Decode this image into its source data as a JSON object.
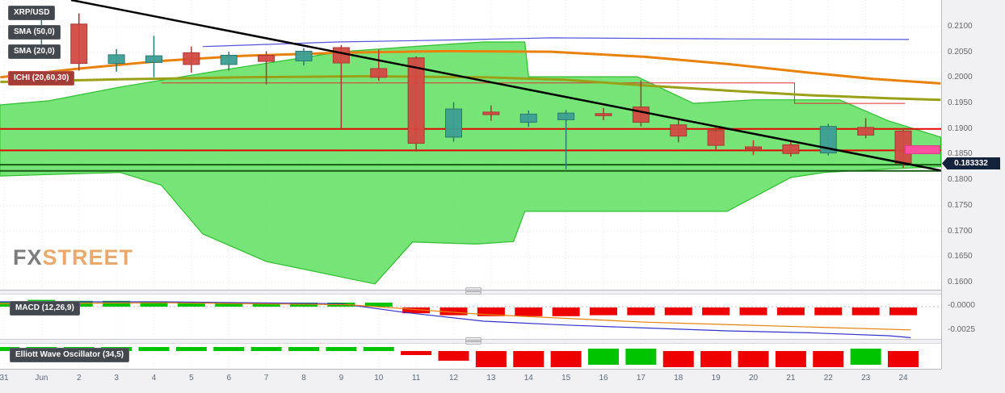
{
  "legend": {
    "symbol": "XRP/USD",
    "sma50": "SMA (50,0)",
    "sma20": "SMA (20,0)",
    "ichimoku": "ICHI (20,60,30)",
    "macd": "MACD (12,26,9)",
    "ewo": "Elliott Wave Oscillator (34,5)"
  },
  "watermark": {
    "fx": "FX",
    "street": "STREET"
  },
  "price_scale": {
    "ticks": [
      "0.2100",
      "0.2050",
      "0.2000",
      "0.1950",
      "0.1900",
      "0.1850",
      "0.1800",
      "0.1750",
      "0.1700",
      "0.1650",
      "0.1600"
    ],
    "current_price": "0.183332",
    "macd_ticks": [
      {
        "label": "-0.0000",
        "value": 0
      },
      {
        "label": "-0.0025",
        "value": -0.0025
      }
    ]
  },
  "time_scale": {
    "labels": [
      "31",
      "Jun",
      "2",
      "3",
      "4",
      "5",
      "6",
      "7",
      "8",
      "9",
      "10",
      "11",
      "12",
      "13",
      "14",
      "15",
      "16",
      "17",
      "18",
      "19",
      "20",
      "21",
      "22",
      "23",
      "24"
    ]
  },
  "colors": {
    "candle_up": "#3d9e93",
    "candle_up_border": "#2a7a71",
    "candle_down": "#d24a42",
    "candle_down_border": "#a93832",
    "cloud": "#55dd55",
    "cloud_border": "#2fbf2f",
    "sma50": "#e8820c",
    "sma20": "#9aa119",
    "kijun": "#e03030",
    "chikou": "#5555dd",
    "level_red": "#e10600",
    "level_green": "#175c13",
    "trend": "#000000",
    "macd_line": "#3333cc",
    "macd_signal": "#e8820c",
    "hist_up": "#00c400",
    "hist_down": "#ee0000",
    "badge_bg": "#43474e",
    "ichi_badge_bg": "#a23c36",
    "price_badge_bg": "#15223c",
    "alert_marker": "#ff4fa0",
    "grid": "#ececef"
  },
  "chart_data": {
    "type": "candlestick",
    "title": "XRP/USD daily with Ichimoku cloud, SMA(50), SMA(20), MACD(12,26,9), Elliott Wave Oscillator(34,5)",
    "x_labels": [
      "31",
      "Jun",
      "2",
      "3",
      "4",
      "5",
      "6",
      "7",
      "8",
      "9",
      "10",
      "11",
      "12",
      "13",
      "14",
      "15",
      "16",
      "17",
      "18",
      "19",
      "20",
      "21",
      "22",
      "23",
      "24"
    ],
    "price_axis": {
      "min": 0.1585,
      "max": 0.2152,
      "ticks": [
        0.21,
        0.205,
        0.2,
        0.195,
        0.19,
        0.185,
        0.18,
        0.175,
        0.17,
        0.165,
        0.16
      ]
    },
    "current_price": 0.183332,
    "candles": [
      null,
      {
        "o": 0.208,
        "h": 0.2115,
        "l": 0.2058,
        "c": 0.2102
      },
      {
        "o": 0.2105,
        "h": 0.2126,
        "l": 0.2014,
        "c": 0.2028
      },
      {
        "o": 0.2028,
        "h": 0.2056,
        "l": 0.2012,
        "c": 0.2045
      },
      {
        "o": 0.203,
        "h": 0.2082,
        "l": 0.2001,
        "c": 0.2043
      },
      {
        "o": 0.2049,
        "h": 0.2061,
        "l": 0.201,
        "c": 0.2026
      },
      {
        "o": 0.2026,
        "h": 0.2051,
        "l": 0.2014,
        "c": 0.2044
      },
      {
        "o": 0.2044,
        "h": 0.2052,
        "l": 0.1987,
        "c": 0.2032
      },
      {
        "o": 0.2033,
        "h": 0.2058,
        "l": 0.2024,
        "c": 0.2052
      },
      {
        "o": 0.2059,
        "h": 0.2064,
        "l": 0.19,
        "c": 0.2029
      },
      {
        "o": 0.2018,
        "h": 0.2055,
        "l": 0.1994,
        "c": 0.2001
      },
      {
        "o": 0.2039,
        "h": 0.2042,
        "l": 0.1856,
        "c": 0.1872
      },
      {
        "o": 0.1884,
        "h": 0.1952,
        "l": 0.1875,
        "c": 0.1939
      },
      {
        "o": 0.1933,
        "h": 0.1946,
        "l": 0.1916,
        "c": 0.1928
      },
      {
        "o": 0.1913,
        "h": 0.1936,
        "l": 0.1904,
        "c": 0.1929
      },
      {
        "o": 0.1918,
        "h": 0.1937,
        "l": 0.1821,
        "c": 0.1931
      },
      {
        "o": 0.193,
        "h": 0.1941,
        "l": 0.1917,
        "c": 0.1926
      },
      {
        "o": 0.1943,
        "h": 0.1995,
        "l": 0.1905,
        "c": 0.1913
      },
      {
        "o": 0.1908,
        "h": 0.1917,
        "l": 0.1874,
        "c": 0.1886
      },
      {
        "o": 0.1897,
        "h": 0.1904,
        "l": 0.1859,
        "c": 0.1868
      },
      {
        "o": 0.1865,
        "h": 0.1878,
        "l": 0.1849,
        "c": 0.1861
      },
      {
        "o": 0.1869,
        "h": 0.1876,
        "l": 0.1846,
        "c": 0.1852
      },
      {
        "o": 0.1853,
        "h": 0.191,
        "l": 0.1848,
        "c": 0.1905
      },
      {
        "o": 0.1903,
        "h": 0.1921,
        "l": 0.1882,
        "c": 0.1888
      },
      {
        "o": 0.1896,
        "h": 0.1902,
        "l": 0.1824,
        "c": 0.1833
      }
    ],
    "levels": [
      {
        "price": 0.19,
        "color": "red",
        "width": 2
      },
      {
        "price": 0.1858,
        "color": "red",
        "width": 2
      },
      {
        "price": 0.183,
        "color": "green",
        "width": 2
      },
      {
        "price": 0.1818,
        "color": "green",
        "width": 2
      }
    ],
    "trendline": {
      "points": [
        [
          1.79,
          0.2152
        ],
        [
          25.0,
          0.1819
        ]
      ]
    },
    "sma50": [
      [
        -0.1,
        0.2001
      ],
      [
        2,
        0.2018
      ],
      [
        4.2,
        0.2033
      ],
      [
        6.4,
        0.2043
      ],
      [
        9,
        0.2049
      ],
      [
        11.8,
        0.2052
      ],
      [
        14.6,
        0.2051
      ],
      [
        17.1,
        0.2041
      ],
      [
        19.3,
        0.2027
      ],
      [
        21.5,
        0.201
      ],
      [
        23.2,
        0.1998
      ],
      [
        25,
        0.1989
      ]
    ],
    "sma20": [
      [
        -0.1,
        0.1992
      ],
      [
        3.1,
        0.1997
      ],
      [
        6.4,
        0.2001
      ],
      [
        9.6,
        0.2003
      ],
      [
        12.8,
        0.2001
      ],
      [
        15,
        0.1996
      ],
      [
        17.1,
        0.1985
      ],
      [
        19.3,
        0.1975
      ],
      [
        21.5,
        0.1966
      ],
      [
        23.6,
        0.196
      ],
      [
        25,
        0.1957
      ]
    ],
    "kijun": [
      [
        4.2,
        0.199
      ],
      [
        21.1,
        0.199
      ],
      [
        21.1,
        0.195
      ],
      [
        24.05,
        0.195
      ]
    ],
    "chikou": [
      [
        5.3,
        0.2061
      ],
      [
        8.9,
        0.207
      ],
      [
        12,
        0.2074
      ],
      [
        14.6,
        0.2078
      ],
      [
        19.3,
        0.2076
      ],
      [
        24.15,
        0.2075
      ]
    ],
    "cloud": {
      "top": [
        [
          -0.11,
          0.1947
        ],
        [
          1.2,
          0.1955
        ],
        [
          3.1,
          0.1982
        ],
        [
          5.9,
          0.2016
        ],
        [
          9,
          0.2051
        ],
        [
          11.1,
          0.2062
        ],
        [
          12.8,
          0.207
        ],
        [
          13.9,
          0.207
        ],
        [
          14.0,
          0.2002
        ],
        [
          16.9,
          0.2002
        ],
        [
          18.4,
          0.195
        ],
        [
          20,
          0.1957
        ],
        [
          22.3,
          0.1957
        ],
        [
          23.6,
          0.1916
        ],
        [
          25,
          0.1884
        ]
      ],
      "bottom": [
        [
          -0.11,
          0.1808
        ],
        [
          3.1,
          0.1815
        ],
        [
          4.2,
          0.179
        ],
        [
          5.3,
          0.1695
        ],
        [
          7,
          0.1641
        ],
        [
          9.9,
          0.1597
        ],
        [
          10.9,
          0.1679
        ],
        [
          12.6,
          0.1675
        ],
        [
          13.6,
          0.168
        ],
        [
          13.9,
          0.1739
        ],
        [
          19.3,
          0.1739
        ],
        [
          20.2,
          0.1774
        ],
        [
          21,
          0.1805
        ],
        [
          21.9,
          0.1815
        ],
        [
          23.6,
          0.1822
        ],
        [
          25,
          0.1826
        ]
      ]
    },
    "macd": {
      "ylim": [
        -0.0035,
        0.0013
      ],
      "histogram": [
        0.0005,
        0.0007,
        0.0006,
        0.0006,
        0.0005,
        0.0005,
        0.0004,
        0.0004,
        0.0004,
        0.0003,
        0.0002,
        -0.0006,
        -0.0008,
        -0.0009,
        -0.0009,
        -0.0009,
        -0.0008,
        -0.0008,
        -0.0008,
        -0.0008,
        -0.0008,
        -0.0008,
        -0.0008,
        -0.0008,
        -0.0008
      ],
      "macd_line": [
        [
          -0.11,
          0.0005
        ],
        [
          4.2,
          0.0005
        ],
        [
          9,
          0.0003
        ],
        [
          10.7,
          -0.0006
        ],
        [
          12.8,
          -0.0015
        ],
        [
          15,
          -0.0019
        ],
        [
          17.1,
          -0.0022
        ],
        [
          19.3,
          -0.0025
        ],
        [
          21.5,
          -0.0027
        ],
        [
          23.6,
          -0.003
        ],
        [
          24.2,
          -0.0032
        ]
      ],
      "signal_line": [
        [
          -0.11,
          0.0003
        ],
        [
          4.2,
          0.0004
        ],
        [
          9.2,
          0.0002
        ],
        [
          12.8,
          -0.0008
        ],
        [
          17.1,
          -0.0016
        ],
        [
          21.5,
          -0.0021
        ],
        [
          24.2,
          -0.0024
        ]
      ]
    },
    "ewo": {
      "values": [
        0.3,
        0.5,
        0.4,
        0.4,
        0.4,
        0.3,
        0.3,
        0.3,
        0.3,
        0.3,
        0.3,
        -0.25,
        -0.6,
        -1,
        -1,
        -1,
        1,
        1,
        -1,
        -1,
        -1,
        -1,
        -1,
        1,
        -1
      ]
    }
  }
}
